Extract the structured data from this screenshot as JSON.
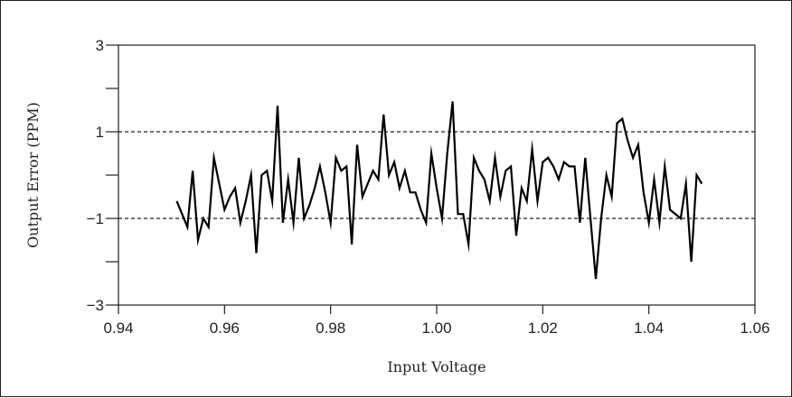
{
  "chart_data": {
    "type": "line",
    "xlabel": "Input Voltage",
    "ylabel": "Output Error (PPM)",
    "xlim": [
      0.94,
      1.06
    ],
    "ylim": [
      -3,
      3
    ],
    "x_ticks": [
      0.94,
      0.96,
      0.98,
      1.0,
      1.02,
      1.04,
      1.06
    ],
    "x_tick_labels": [
      "0.94",
      "0.96",
      "0.98",
      "1.00",
      "1.02",
      "1.04",
      "1.06"
    ],
    "y_ticks": [
      -3,
      -2,
      -1,
      0,
      1,
      2,
      3
    ],
    "y_tick_labels": [
      "−3",
      "",
      "−1",
      "",
      "1",
      "",
      "3"
    ],
    "reference_lines": [
      1,
      -1
    ],
    "grid": false,
    "series": [
      {
        "x": [
          0.951,
          0.952,
          0.953,
          0.954,
          0.955,
          0.956,
          0.957,
          0.958,
          0.959,
          0.96,
          0.961,
          0.962,
          0.963,
          0.964,
          0.965,
          0.966,
          0.967,
          0.968,
          0.969,
          0.97,
          0.971,
          0.972,
          0.973,
          0.974,
          0.975,
          0.976,
          0.977,
          0.978,
          0.979,
          0.98,
          0.981,
          0.982,
          0.983,
          0.984,
          0.985,
          0.986,
          0.987,
          0.988,
          0.989,
          0.99,
          0.991,
          0.992,
          0.993,
          0.994,
          0.995,
          0.996,
          0.997,
          0.998,
          0.999,
          1.0,
          1.001,
          1.002,
          1.003,
          1.004,
          1.005,
          1.006,
          1.007,
          1.008,
          1.009,
          1.01,
          1.011,
          1.012,
          1.013,
          1.014,
          1.015,
          1.016,
          1.017,
          1.018,
          1.019,
          1.02,
          1.021,
          1.022,
          1.023,
          1.024,
          1.025,
          1.026,
          1.027,
          1.028,
          1.029,
          1.03,
          1.031,
          1.032,
          1.033,
          1.034,
          1.035,
          1.036,
          1.037,
          1.038,
          1.039,
          1.04,
          1.041,
          1.042,
          1.043,
          1.044,
          1.045,
          1.046,
          1.047,
          1.048,
          1.049,
          1.05
        ],
        "y": [
          -0.6,
          -0.9,
          -1.2,
          0.1,
          -1.5,
          -1.0,
          -1.2,
          0.4,
          -0.2,
          -0.8,
          -0.5,
          -0.3,
          -1.1,
          -0.6,
          0.0,
          -1.8,
          0.0,
          0.1,
          -0.6,
          1.6,
          -1.1,
          -0.1,
          -1.1,
          0.4,
          -1.0,
          -0.7,
          -0.3,
          0.2,
          -0.4,
          -1.1,
          0.4,
          0.1,
          0.2,
          -1.6,
          0.7,
          -0.5,
          -0.2,
          0.1,
          -0.1,
          1.4,
          0.0,
          0.3,
          -0.3,
          0.1,
          -0.4,
          -0.4,
          -0.8,
          -1.1,
          0.5,
          -0.3,
          -1.0,
          0.5,
          1.7,
          -0.9,
          -0.9,
          -1.6,
          0.4,
          0.1,
          -0.1,
          -0.6,
          0.4,
          -0.5,
          0.1,
          0.2,
          -1.4,
          -0.3,
          -0.6,
          0.6,
          -0.6,
          0.3,
          0.4,
          0.2,
          -0.1,
          0.3,
          0.2,
          0.2,
          -1.1,
          0.4,
          -1.0,
          -2.4,
          -1.0,
          0.0,
          -0.5,
          1.2,
          1.3,
          0.8,
          0.4,
          0.7,
          -0.4,
          -1.1,
          -0.1,
          -1.1,
          0.2,
          -0.8,
          -0.9,
          -1.0,
          -0.2,
          -2.0,
          0.0,
          -0.2
        ]
      }
    ]
  }
}
